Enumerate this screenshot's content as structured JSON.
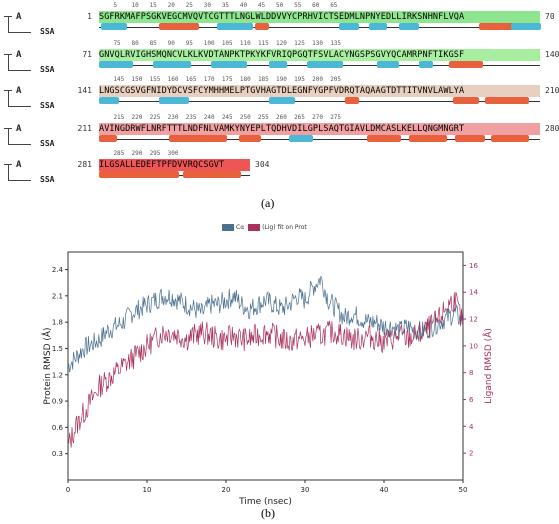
{
  "rows": [
    {
      "start": "1",
      "end": "70",
      "seq": "SGFRKMAFPSGKVEGCMVQVTCGTTTLNGLWLDDVVYCPRHVICTSEDMLNPNYEDLLIRKSNHNFLVQA",
      "ruler": "    5    10   15   20   25   30   35   40   45   50   55   60   65",
      "bg": "#8fe58f",
      "label_a": "A",
      "label_s": "SSA"
    },
    {
      "start": "71",
      "end": "140",
      "seq": "GNVQLRVIGHSMQNCVLKLKVDTANPKTPKYKFVRIQPGQTFSVLACYNGSPSGVYQCAMRPNFTIKGSF",
      "ruler": "    75   80   85   90   95   100  105  110  115  120  125  130  135",
      "bg": "#a8eea0",
      "label_a": "A",
      "label_s": "SSA"
    },
    {
      "start": "141",
      "end": "210",
      "seq": "LNGSCGSVGFNIDYDCVSFCYMHHMELPTGVHAGTDLEGNFYGPFVDRQTAQAAGTDTTITVNVLAWLYA",
      "ruler": "    145  150  155  160  165  170  175  180  185  190  195  200  205",
      "bg": "#e8d0c0",
      "label_a": "A",
      "label_s": "SSA"
    },
    {
      "start": "211",
      "end": "280",
      "seq": "AVINGDRWFLNRFTTTLNDFNLVAMKYNYEPLTQDHVDILGPLSAQTGIAVLDMCASLKELLQNGMNGRT",
      "ruler": "    215  220  225  230  235  240  245  250  255  260  265  270  275",
      "bg": "#f0a0a0",
      "label_a": "A",
      "label_s": "SSA"
    },
    {
      "start": "281",
      "end": "304",
      "seq": "ILGSALLEDEFTPFDVVRQCSGVT",
      "ruler": "    285  290  295  300",
      "bg": "#ee5555",
      "label_a": "A",
      "label_s": "SSA"
    }
  ],
  "caption_a": "(a)",
  "caption_b": "(b)",
  "colors": {
    "protein": "#4a7090",
    "ligand": "#a8325a",
    "helix": "#e8603c",
    "strand": "#4bb8d8"
  },
  "chart_data": {
    "type": "line",
    "legend": [
      "Cα",
      "(Lig) fit on Prot"
    ],
    "xlabel": "Time (nsec)",
    "ylabel_left": "Protein RMSD (Å)",
    "ylabel_right": "Ligand RMSD (Å)",
    "xlim": [
      0,
      50
    ],
    "ylim_left": [
      0.0,
      2.6
    ],
    "ylim_right": [
      0,
      17
    ],
    "x_ticks": [
      0,
      10,
      20,
      30,
      40,
      50
    ],
    "y_ticks_left": [
      0.3,
      0.6,
      0.9,
      1.2,
      1.5,
      1.8,
      2.1,
      2.4
    ],
    "y_ticks_right": [
      2,
      4,
      6,
      8,
      10,
      12,
      14,
      16
    ],
    "protein_x": [
      0,
      1,
      2,
      3,
      4,
      5,
      6,
      7,
      8,
      9,
      10,
      11,
      12,
      13,
      14,
      15,
      16,
      17,
      18,
      19,
      20,
      21,
      22,
      23,
      24,
      25,
      26,
      27,
      28,
      29,
      30,
      31,
      32,
      33,
      34,
      35,
      36,
      37,
      38,
      39,
      40,
      41,
      42,
      43,
      44,
      45,
      46,
      47,
      48,
      49,
      50
    ],
    "protein_y": [
      1.3,
      1.4,
      1.5,
      1.55,
      1.6,
      1.7,
      1.75,
      1.8,
      1.9,
      1.95,
      2.0,
      2.05,
      2.1,
      2.1,
      2.05,
      2.0,
      1.95,
      1.9,
      2.0,
      2.0,
      2.05,
      2.1,
      2.0,
      1.95,
      2.0,
      2.05,
      2.0,
      1.95,
      2.0,
      2.1,
      2.05,
      2.2,
      2.3,
      2.05,
      1.95,
      1.85,
      1.9,
      1.85,
      1.8,
      1.8,
      1.75,
      1.75,
      1.7,
      1.75,
      1.7,
      1.7,
      1.75,
      1.8,
      1.85,
      1.9,
      1.8
    ],
    "ligand_x": [
      0,
      1,
      2,
      3,
      4,
      5,
      6,
      7,
      8,
      9,
      10,
      11,
      12,
      13,
      14,
      15,
      16,
      17,
      18,
      19,
      20,
      21,
      22,
      23,
      24,
      25,
      26,
      27,
      28,
      29,
      30,
      31,
      32,
      33,
      34,
      35,
      36,
      37,
      38,
      39,
      40,
      41,
      42,
      43,
      44,
      45,
      46,
      47,
      48,
      49,
      50
    ],
    "ligand_y": [
      2.5,
      4.0,
      5.0,
      6.0,
      7.0,
      7.5,
      8.0,
      8.5,
      9.0,
      9.5,
      10.0,
      10.5,
      11.0,
      11.0,
      10.8,
      10.5,
      10.8,
      11.0,
      10.8,
      10.5,
      10.5,
      10.8,
      10.5,
      10.5,
      10.8,
      11.0,
      10.8,
      10.5,
      10.3,
      10.5,
      10.5,
      10.8,
      10.8,
      11.0,
      11.0,
      10.8,
      10.5,
      10.5,
      10.8,
      10.5,
      10.3,
      10.5,
      10.8,
      10.5,
      10.8,
      11.0,
      11.5,
      12.0,
      13.0,
      13.5,
      11.5
    ]
  }
}
